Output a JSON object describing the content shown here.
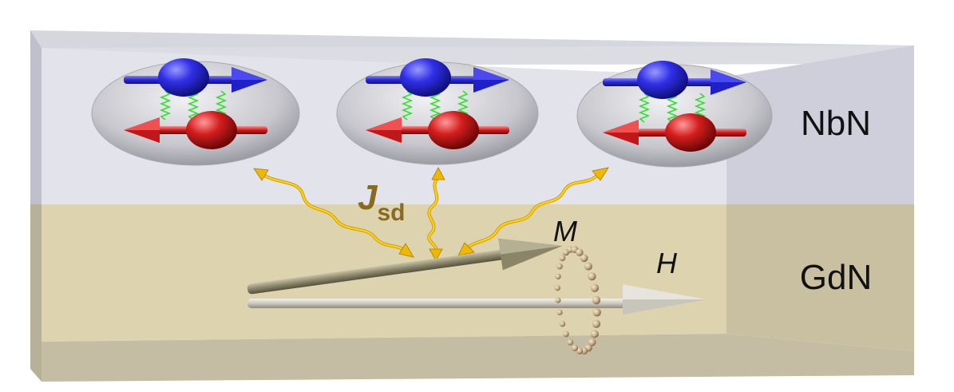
{
  "layers": {
    "top": {
      "label": "NbN"
    },
    "bottom": {
      "label": "GdN"
    }
  },
  "coupling": {
    "symbol": "J",
    "subscript": "sd"
  },
  "vectors": {
    "magnetization": {
      "label": "M"
    },
    "field": {
      "label": "H"
    }
  },
  "cooper_pairs": {
    "count": 3
  },
  "colors": {
    "top_front": "#e4e4ee",
    "top_side": "#cfcfdc",
    "top_lid": "#d4d4dc",
    "bottom_front": "#ddd3b0",
    "bottom_side": "#c8bfa2",
    "bottom_floor": "#c6bfa6",
    "bubble": "#bfbfc6",
    "spin_up": "#2b2be0",
    "spin_down": "#d42020",
    "spring": "#33dd33",
    "wave": "#f5c400",
    "jsd_text": "#8a6a1e",
    "arrow_m": "#8f8a6e",
    "arrow_h": "#cdcac0",
    "precession_bead": "#c9b48f"
  }
}
